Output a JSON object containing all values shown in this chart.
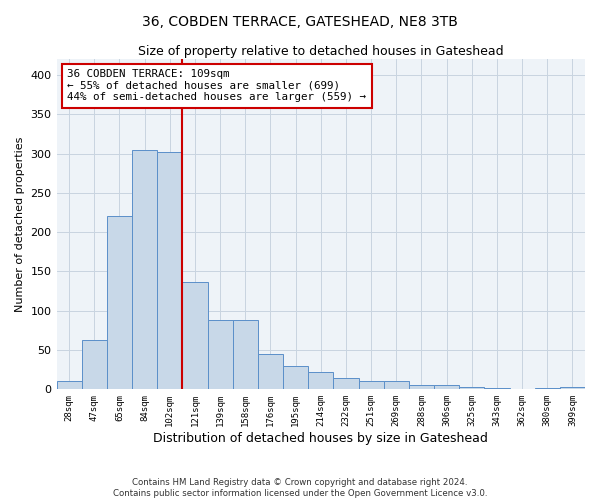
{
  "title": "36, COBDEN TERRACE, GATESHEAD, NE8 3TB",
  "subtitle": "Size of property relative to detached houses in Gateshead",
  "xlabel": "Distribution of detached houses by size in Gateshead",
  "ylabel": "Number of detached properties",
  "bar_labels": [
    "28sqm",
    "47sqm",
    "65sqm",
    "84sqm",
    "102sqm",
    "121sqm",
    "139sqm",
    "158sqm",
    "176sqm",
    "195sqm",
    "214sqm",
    "232sqm",
    "251sqm",
    "269sqm",
    "288sqm",
    "306sqm",
    "325sqm",
    "343sqm",
    "362sqm",
    "380sqm",
    "399sqm"
  ],
  "bar_values": [
    10,
    63,
    220,
    305,
    302,
    137,
    88,
    88,
    45,
    30,
    22,
    14,
    11,
    10,
    5,
    5,
    3,
    2,
    1,
    2,
    3
  ],
  "bar_color": "#c8d8e8",
  "bar_edge_color": "#5b8fc9",
  "vline_index": 4.5,
  "vline_color": "#cc0000",
  "annotation_text": "36 COBDEN TERRACE: 109sqm\n← 55% of detached houses are smaller (699)\n44% of semi-detached houses are larger (559) →",
  "annotation_box_color": "#ffffff",
  "annotation_box_edge_color": "#cc0000",
  "ylim": [
    0,
    420
  ],
  "yticks": [
    0,
    50,
    100,
    150,
    200,
    250,
    300,
    350,
    400
  ],
  "grid_color": "#c8d4e0",
  "background_color": "#eef3f8",
  "title_fontsize": 10,
  "subtitle_fontsize": 9,
  "ylabel_fontsize": 8,
  "xlabel_fontsize": 9,
  "footer_line1": "Contains HM Land Registry data © Crown copyright and database right 2024.",
  "footer_line2": "Contains public sector information licensed under the Open Government Licence v3.0."
}
